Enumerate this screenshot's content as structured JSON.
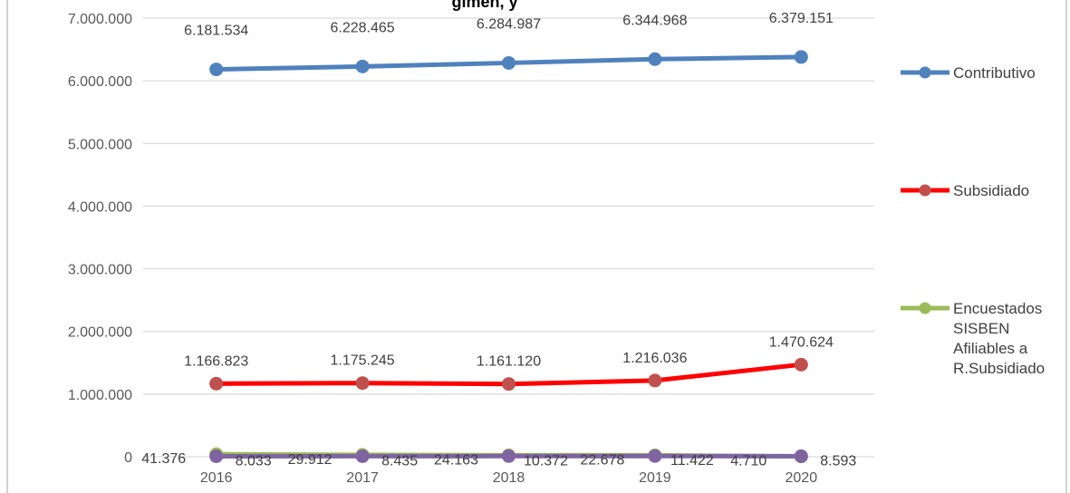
{
  "chart_data": {
    "type": "line",
    "title": "gimen, y",
    "categories": [
      "2016",
      "2017",
      "2018",
      "2019",
      "2020"
    ],
    "ylim": [
      0,
      7000000
    ],
    "yticks": [
      0,
      1000000,
      2000000,
      3000000,
      4000000,
      5000000,
      6000000,
      7000000
    ],
    "ytick_labels": [
      "0",
      "1.000.000",
      "2.000.000",
      "3.000.000",
      "4.000.000",
      "5.000.000",
      "6.000.000",
      "7.000.000"
    ],
    "grid": true,
    "legend_position": "right",
    "series": [
      {
        "name": "Contributivo",
        "color": "#4f81bd",
        "values": [
          6181534,
          6228465,
          6284987,
          6344968,
          6379151
        ],
        "labels": [
          "6.181.534",
          "6.228.465",
          "6.284.987",
          "6.344.968",
          "6.379.151"
        ],
        "in_legend": true
      },
      {
        "name": "Subsidiado",
        "color": "#ff0000",
        "marker_color": "#c0504d",
        "values": [
          1166823,
          1175245,
          1161120,
          1216036,
          1470624
        ],
        "labels": [
          "1.166.823",
          "1.175.245",
          "1.161.120",
          "1.216.036",
          "1.470.624"
        ],
        "in_legend": true
      },
      {
        "name": "Encuestados SISBEN Afiliables a R.Subsidiado",
        "color": "#9bbb59",
        "legend_lines": [
          "Encuestados",
          "SISBEN",
          "Afiliables a",
          "R.Subsidiado"
        ],
        "values": [
          41376,
          29912,
          24163,
          22678,
          4710
        ],
        "labels": [
          "41.376",
          "29.912",
          "24.163",
          "22.678",
          "4.710"
        ],
        "in_legend": true
      },
      {
        "name": "",
        "color": "#8064a2",
        "values": [
          8033,
          8435,
          10372,
          11422,
          8593
        ],
        "labels": [
          "8.033",
          "8.435",
          "10.372",
          "11.422",
          "8.593"
        ],
        "in_legend": false
      }
    ]
  }
}
